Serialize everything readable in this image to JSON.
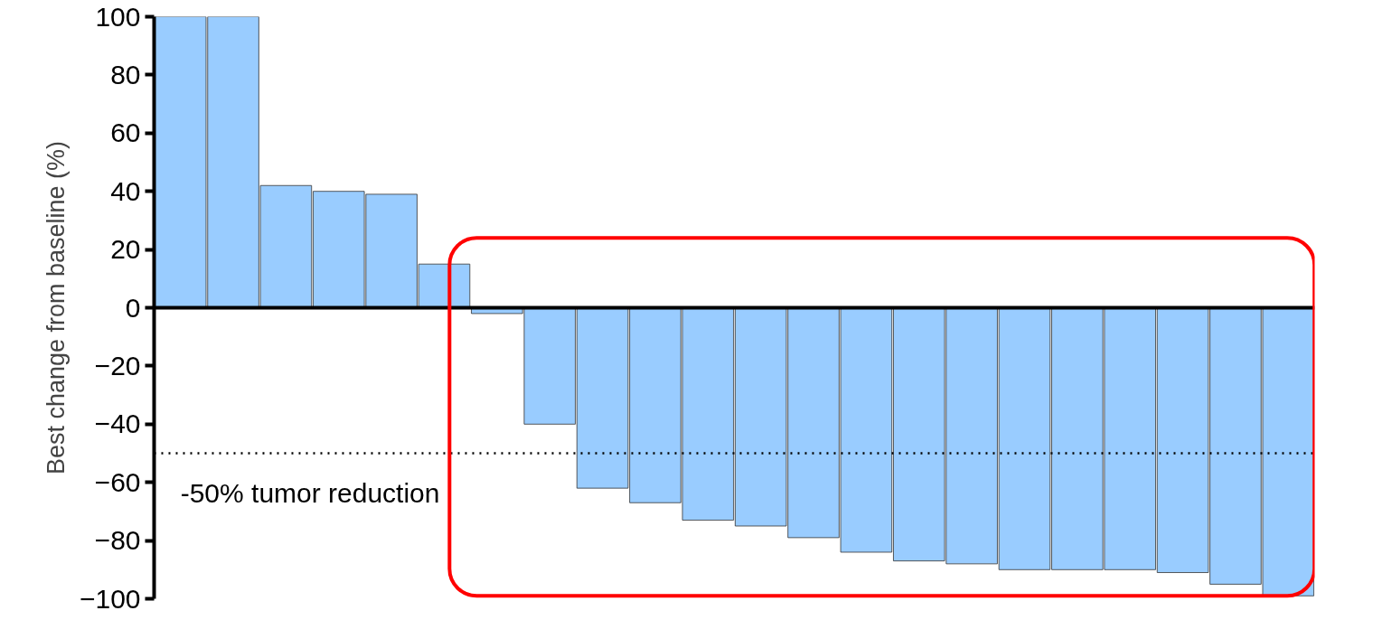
{
  "chart_data": {
    "type": "bar",
    "ylabel": "Best change from baseline (%)",
    "categories": [
      null,
      null,
      null,
      null,
      null,
      null,
      null,
      null,
      null,
      null,
      null,
      null,
      null,
      null,
      null,
      null,
      null,
      null,
      null,
      null,
      null,
      null
    ],
    "values": [
      100,
      100,
      42,
      40,
      39,
      15,
      -2,
      -40,
      -62,
      -67,
      -73,
      -75,
      -79,
      -84,
      -87,
      -88,
      -90,
      -90,
      -90,
      -91,
      -95,
      -99
    ],
    "color": "#99ccff",
    "ylim": [
      -100,
      100
    ],
    "yticks": [
      -100,
      -80,
      -60,
      -40,
      -20,
      0,
      20,
      40,
      60,
      80,
      100
    ],
    "ref_lines": [
      {
        "axis": "y",
        "value": 0,
        "color": "#000000",
        "line_style": "solid"
      },
      {
        "axis": "y",
        "value": -50,
        "label": "-50% tumor reduction",
        "color": "#000000",
        "line_style": "dotted"
      }
    ],
    "grid": false
  }
}
